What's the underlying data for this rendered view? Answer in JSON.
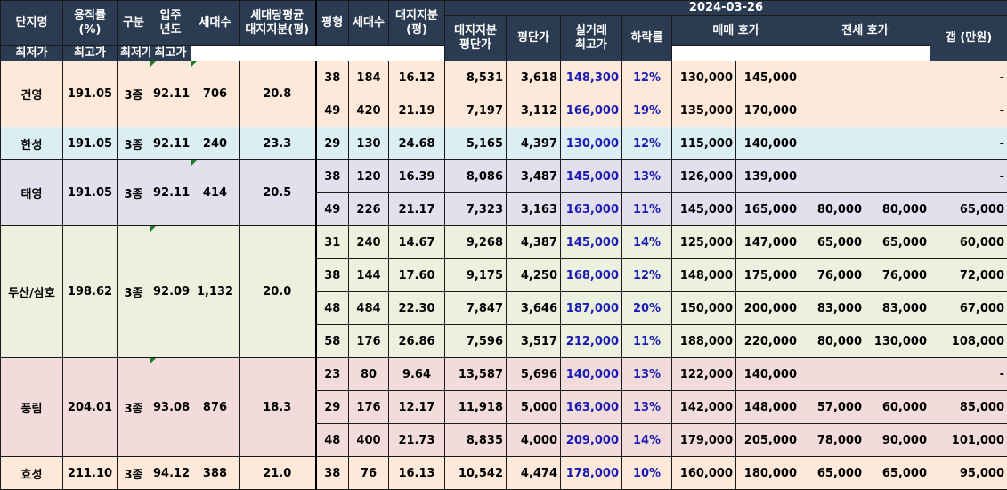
{
  "date": "2024-03-26",
  "headers": {
    "complex": "단지명",
    "far": "용적률\n(%)",
    "zone": "구분",
    "move_in": "입주\n년도",
    "households": "세대수",
    "avg_land": "세대당평균\n대지지분(평)",
    "pyeong": "평형",
    "type_households": "세대수",
    "land_share": "대지지분\n(평)",
    "land_price": "대지지분\n평단가",
    "unit_price": "평단가",
    "max_trade": "실거래\n최고가",
    "drop_rate": "하락률",
    "sale_ask": "매매 호가",
    "jeonse_ask": "전세 호가",
    "min": "최저가",
    "max": "최고가",
    "gap": "갭 (만원)"
  },
  "rows": [
    {
      "complex": "건영",
      "far": "191.05",
      "zone": "3종",
      "year": "92.11",
      "households": "706",
      "avg_land": "20.8",
      "pyeong": "38",
      "type_hh": "184",
      "land": "16.12",
      "land_price": "8,531",
      "unit_price": "3,618",
      "max_trade": "148,300",
      "drop": "12%",
      "sale_min": "130,000",
      "sale_max": "145,000",
      "j_min": "",
      "j_max": "",
      "gap": "-"
    },
    {
      "pyeong": "49",
      "type_hh": "420",
      "land": "21.19",
      "land_price": "7,197",
      "unit_price": "3,112",
      "max_trade": "166,000",
      "drop": "19%",
      "sale_min": "135,000",
      "sale_max": "170,000",
      "j_min": "",
      "j_max": "",
      "gap": "-"
    },
    {
      "complex": "한성",
      "far": "191.05",
      "zone": "3종",
      "year": "92.11",
      "households": "240",
      "avg_land": "23.3",
      "pyeong": "29",
      "type_hh": "130",
      "land": "24.68",
      "land_price": "5,165",
      "unit_price": "4,397",
      "max_trade": "130,000",
      "drop": "12%",
      "sale_min": "115,000",
      "sale_max": "140,000",
      "j_min": "",
      "j_max": "",
      "gap": "-"
    },
    {
      "complex": "태영",
      "far": "191.05",
      "zone": "3종",
      "year": "92.11",
      "households": "414",
      "avg_land": "20.5",
      "pyeong": "38",
      "type_hh": "120",
      "land": "16.39",
      "land_price": "8,086",
      "unit_price": "3,487",
      "max_trade": "145,000",
      "drop": "13%",
      "sale_min": "126,000",
      "sale_max": "139,000",
      "j_min": "",
      "j_max": "",
      "gap": "-"
    },
    {
      "pyeong": "49",
      "type_hh": "226",
      "land": "21.17",
      "land_price": "7,323",
      "unit_price": "3,163",
      "max_trade": "163,000",
      "drop": "11%",
      "sale_min": "145,000",
      "sale_max": "165,000",
      "j_min": "80,000",
      "j_max": "80,000",
      "gap": "65,000"
    },
    {
      "complex": "두산/삼호",
      "far": "198.62",
      "zone": "3종",
      "year": "92.09",
      "households": "1,132",
      "avg_land": "20.0",
      "pyeong": "31",
      "type_hh": "240",
      "land": "14.67",
      "land_price": "9,268",
      "unit_price": "4,387",
      "max_trade": "145,000",
      "drop": "14%",
      "sale_min": "125,000",
      "sale_max": "147,000",
      "j_min": "65,000",
      "j_max": "65,000",
      "gap": "60,000"
    },
    {
      "pyeong": "38",
      "type_hh": "144",
      "land": "17.60",
      "land_price": "9,175",
      "unit_price": "4,250",
      "max_trade": "168,000",
      "drop": "12%",
      "sale_min": "148,000",
      "sale_max": "175,000",
      "j_min": "76,000",
      "j_max": "76,000",
      "gap": "72,000"
    },
    {
      "pyeong": "48",
      "type_hh": "484",
      "land": "22.30",
      "land_price": "7,847",
      "unit_price": "3,646",
      "max_trade": "187,000",
      "drop": "20%",
      "sale_min": "150,000",
      "sale_max": "200,000",
      "j_min": "83,000",
      "j_max": "83,000",
      "gap": "67,000"
    },
    {
      "pyeong": "58",
      "type_hh": "176",
      "land": "26.86",
      "land_price": "7,596",
      "unit_price": "3,517",
      "max_trade": "212,000",
      "drop": "11%",
      "sale_min": "188,000",
      "sale_max": "220,000",
      "j_min": "80,000",
      "j_max": "130,000",
      "gap": "108,000"
    },
    {
      "complex": "풍림",
      "far": "204.01",
      "zone": "3종",
      "year": "93.08",
      "households": "876",
      "avg_land": "18.3",
      "pyeong": "23",
      "type_hh": "80",
      "land": "9.64",
      "land_price": "13,587",
      "unit_price": "5,696",
      "max_trade": "140,000",
      "drop": "13%",
      "sale_min": "122,000",
      "sale_max": "140,000",
      "j_min": "",
      "j_max": "",
      "gap": "-"
    },
    {
      "pyeong": "29",
      "type_hh": "176",
      "land": "12.17",
      "land_price": "11,918",
      "unit_price": "5,000",
      "max_trade": "163,000",
      "drop": "13%",
      "sale_min": "142,000",
      "sale_max": "148,000",
      "j_min": "57,000",
      "j_max": "60,000",
      "gap": "85,000"
    },
    {
      "pyeong": "48",
      "type_hh": "400",
      "land": "21.73",
      "land_price": "8,835",
      "unit_price": "4,000",
      "max_trade": "209,000",
      "drop": "14%",
      "sale_min": "179,000",
      "sale_max": "205,000",
      "j_min": "78,000",
      "j_max": "90,000",
      "gap": "101,000"
    },
    {
      "complex": "효성",
      "far": "211.10",
      "zone": "3종",
      "year": "94.12",
      "households": "388",
      "avg_land": "21.0",
      "pyeong": "38",
      "type_hh": "76",
      "land": "16.13",
      "land_price": "10,542",
      "unit_price": "4,474",
      "max_trade": "178,000",
      "drop": "10%",
      "sale_min": "160,000",
      "sale_max": "180,000",
      "j_min": "65,000",
      "j_max": "65,000",
      "gap": "95,000"
    }
  ]
}
